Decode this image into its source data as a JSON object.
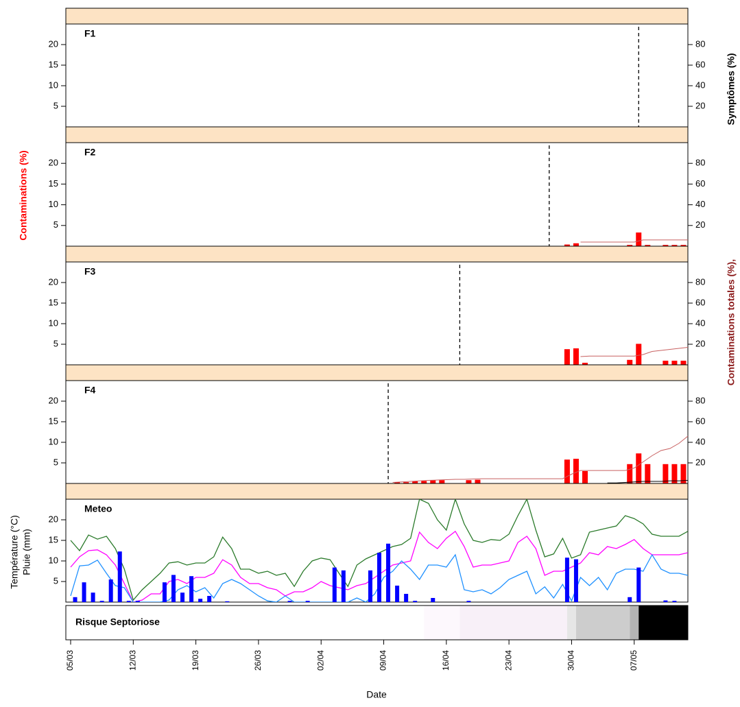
{
  "figure": {
    "xlabel": "Date",
    "xlim": [
      "05/03",
      "13/05"
    ],
    "xticks": [
      "05/03",
      "12/03",
      "19/03",
      "26/03",
      "02/04",
      "09/04",
      "16/04",
      "23/04",
      "30/04",
      "07/05"
    ],
    "ylabel": "Contaminations (%)",
    "y2labels": [
      "Symptômes (%)",
      "Contaminations totales (%),"
    ]
  },
  "chart_data": [
    {
      "type": "bar",
      "title": "F1",
      "ylim": [
        0,
        25
      ],
      "yticks": [
        5,
        10,
        15,
        20
      ],
      "y2lim": [
        0,
        100
      ],
      "y2ticks": [
        20,
        40,
        60,
        80
      ],
      "vline": "08/05",
      "series": []
    },
    {
      "type": "bar",
      "title": "F2",
      "ylim": [
        0,
        25
      ],
      "yticks": [
        5,
        10,
        15,
        20
      ],
      "y2lim": [
        0,
        100
      ],
      "y2ticks": [
        20,
        40,
        60,
        80
      ],
      "vline": "28/04",
      "series": [
        {
          "type": "bar",
          "color": "#ff0000",
          "x": [
            "30/04",
            "01/05",
            "07/05",
            "08/05",
            "09/05",
            "11/05",
            "12/05",
            "13/05"
          ],
          "values": [
            0.4,
            0.7,
            0.3,
            3.3,
            0.3,
            0.3,
            0.3,
            0.3
          ]
        },
        {
          "type": "line",
          "axis": "y2",
          "color": "#c86060",
          "x": [
            "01/05",
            "02/05",
            "03/05",
            "04/05",
            "05/05",
            "06/05",
            "07/05",
            "08/05",
            "09/05",
            "10/05",
            "11/05",
            "12/05",
            "13/05"
          ],
          "values": [
            4,
            4,
            4,
            4,
            4,
            4,
            4,
            6,
            6,
            6,
            6,
            6,
            6
          ]
        }
      ]
    },
    {
      "type": "bar",
      "title": "F3",
      "ylim": [
        0,
        25
      ],
      "yticks": [
        5,
        10,
        15,
        20
      ],
      "y2lim": [
        0,
        100
      ],
      "y2ticks": [
        20,
        40,
        60,
        80
      ],
      "vline": "18/04",
      "series": [
        {
          "type": "bar",
          "color": "#ff0000",
          "x": [
            "30/04",
            "01/05",
            "02/05",
            "07/05",
            "08/05",
            "11/05",
            "12/05",
            "13/05"
          ],
          "values": [
            3.8,
            4,
            0.5,
            1.2,
            5.1,
            1,
            1,
            1
          ]
        },
        {
          "type": "line",
          "axis": "y2",
          "color": "#c86060",
          "x": [
            "01/05",
            "02/05",
            "03/05",
            "04/05",
            "05/05",
            "06/05",
            "07/05",
            "08/05",
            "09/05",
            "10/05",
            "11/05",
            "12/05",
            "13/05"
          ],
          "values": [
            8,
            8.5,
            8.5,
            8.5,
            8.5,
            8.5,
            8.5,
            10,
            13,
            14,
            15,
            16,
            17
          ]
        }
      ]
    },
    {
      "type": "bar",
      "title": "F4",
      "ylim": [
        0,
        25
      ],
      "yticks": [
        5,
        10,
        15,
        20
      ],
      "y2lim": [
        0,
        100
      ],
      "y2ticks": [
        20,
        40,
        60,
        80
      ],
      "vline": "10/04",
      "series": [
        {
          "type": "bar",
          "color": "#ff0000",
          "x": [
            "11/04",
            "12/04",
            "13/04",
            "14/04",
            "15/04",
            "16/04",
            "19/04",
            "20/04",
            "30/04",
            "01/05",
            "02/05",
            "07/05",
            "08/05",
            "09/05",
            "11/05",
            "12/05",
            "13/05"
          ],
          "values": [
            0.3,
            0.3,
            0.5,
            0.6,
            0.8,
            0.8,
            0.8,
            0.9,
            5.8,
            6,
            3,
            4.7,
            7.3,
            4.7,
            4.7,
            4.7,
            4.7
          ]
        },
        {
          "type": "line",
          "axis": "y2",
          "color": "#c86060",
          "x": [
            "10/04",
            "11/04",
            "12/04",
            "13/04",
            "14/04",
            "15/04",
            "16/04",
            "17/04",
            "18/04",
            "19/04",
            "20/04",
            "21/04",
            "22/04",
            "23/04",
            "24/04",
            "25/04",
            "26/04",
            "27/04",
            "28/04",
            "29/04",
            "30/04",
            "01/05",
            "02/05",
            "03/05",
            "04/05",
            "05/05",
            "06/05",
            "07/05",
            "08/05",
            "09/05",
            "10/05",
            "11/05",
            "12/05",
            "13/05"
          ],
          "values": [
            1,
            1.5,
            2,
            2.5,
            3,
            3.3,
            3.7,
            4,
            4,
            4.3,
            4.6,
            4.6,
            4.6,
            4.6,
            4.6,
            4.6,
            4.6,
            4.6,
            4.6,
            4.6,
            9,
            12.6,
            12.6,
            12.6,
            12.6,
            12.6,
            12.6,
            15,
            21,
            27,
            32,
            34,
            39,
            46
          ]
        },
        {
          "type": "line",
          "axis": "y2",
          "color": "#000000",
          "x": [
            "04/05",
            "05/05",
            "06/05",
            "07/05",
            "08/05",
            "09/05",
            "10/05",
            "11/05",
            "12/05",
            "13/05"
          ],
          "values": [
            0.5,
            0.5,
            1,
            1.5,
            2,
            2,
            2,
            2.5,
            2.5,
            3
          ]
        }
      ]
    },
    {
      "type": "line",
      "title": "Meteo",
      "ylabel": [
        "Température (°C)",
        "Pluie (mm)"
      ],
      "ylim": [
        0,
        25
      ],
      "yticks": [
        5,
        10,
        15,
        20
      ],
      "x": [
        "05/03",
        "06/03",
        "07/03",
        "08/03",
        "09/03",
        "10/03",
        "11/03",
        "12/03",
        "13/03",
        "14/03",
        "15/03",
        "16/03",
        "17/03",
        "18/03",
        "19/03",
        "20/03",
        "21/03",
        "22/03",
        "23/03",
        "24/03",
        "25/03",
        "26/03",
        "27/03",
        "28/03",
        "29/03",
        "30/03",
        "31/03",
        "01/04",
        "02/04",
        "03/04",
        "04/04",
        "05/04",
        "06/04",
        "07/04",
        "08/04",
        "09/04",
        "10/04",
        "11/04",
        "12/04",
        "13/04",
        "14/04",
        "15/04",
        "16/04",
        "17/04",
        "18/04",
        "19/04",
        "20/04",
        "21/04",
        "22/04",
        "23/04",
        "24/04",
        "25/04",
        "26/04",
        "27/04",
        "28/04",
        "29/04",
        "30/04",
        "01/05",
        "02/05",
        "03/05",
        "04/05",
        "05/05",
        "06/05",
        "07/05",
        "08/05",
        "09/05",
        "10/05",
        "11/05",
        "12/05",
        "13/05"
      ],
      "series": [
        {
          "type": "line",
          "color": "#2a7a2a",
          "values": [
            15,
            12.5,
            16.3,
            15.3,
            16,
            13,
            8,
            0.5,
            3,
            5,
            7,
            9.5,
            9.8,
            9,
            9.5,
            9.5,
            11,
            15.8,
            13,
            8,
            8,
            7,
            7.5,
            6.5,
            7,
            3.8,
            7.5,
            10,
            10.7,
            10.3,
            7,
            3.8,
            9,
            10.5,
            11.5,
            12.5,
            13.5,
            14,
            15.5,
            25,
            24,
            20,
            17.5,
            25,
            19,
            15,
            14.5,
            15.2,
            15,
            16.5,
            21,
            25,
            17.5,
            11,
            11.7,
            15.5,
            10.7,
            11.5,
            17,
            17.5,
            18,
            18.5,
            21,
            20.3,
            19,
            16.5,
            16,
            16,
            16,
            17.2
          ]
        },
        {
          "type": "line",
          "color": "#ff00ff",
          "values": [
            8.5,
            11,
            12.5,
            12.7,
            11.5,
            9,
            4.5,
            0,
            0.5,
            2,
            2,
            5,
            5.5,
            4.5,
            6,
            6,
            7,
            10.3,
            9,
            6,
            4.5,
            4.5,
            3.5,
            3,
            1.5,
            2.5,
            2.5,
            3.5,
            5,
            4,
            3.5,
            3,
            4,
            4.5,
            6,
            7.5,
            9,
            9.5,
            10,
            17,
            14.5,
            13,
            15.5,
            17.2,
            13.5,
            8.5,
            9,
            9,
            9.5,
            10,
            14.5,
            16,
            13,
            6.5,
            7.5,
            7.5,
            8.5,
            9.5,
            12,
            11.5,
            13.5,
            13,
            14,
            15.2,
            13,
            11.5,
            11.5,
            11.5,
            11.5,
            12
          ]
        },
        {
          "type": "line",
          "color": "#1e90ff",
          "values": [
            1.5,
            8.8,
            9,
            10.2,
            7,
            4,
            3.5,
            0,
            0,
            0,
            0,
            0.5,
            3,
            4,
            2.5,
            3.5,
            1,
            4.5,
            5.5,
            4.5,
            3,
            1.5,
            0.3,
            0,
            1.5,
            0,
            0,
            0,
            0,
            0,
            0,
            0,
            1,
            0,
            2,
            6,
            7.5,
            10,
            8,
            5.5,
            9,
            9,
            8.5,
            11.5,
            3,
            2.5,
            3,
            2,
            3.5,
            5.5,
            6.5,
            7.5,
            2,
            3.7,
            1,
            4.3,
            0.3,
            6,
            4,
            6,
            3,
            7,
            8,
            8,
            7.5,
            11.5,
            8,
            7,
            7,
            6.5
          ]
        },
        {
          "type": "bar",
          "color": "#0000ff",
          "x": [
            "06/03",
            "07/03",
            "08/03",
            "09/03",
            "10/03",
            "11/03",
            "12/03",
            "13/03",
            "16/03",
            "17/03",
            "18/03",
            "19/03",
            "20/03",
            "21/03",
            "23/03",
            "30/03",
            "01/04",
            "04/04",
            "05/04",
            "08/04",
            "09/04",
            "10/04",
            "11/04",
            "12/04",
            "13/04",
            "15/04",
            "19/04",
            "30/04",
            "01/05",
            "07/05",
            "08/05",
            "11/05",
            "12/05"
          ],
          "values": [
            1.2,
            4.8,
            2.3,
            0.3,
            5.5,
            12.3,
            0.3,
            0.3,
            4.8,
            6.6,
            2.3,
            6.3,
            0.8,
            1.5,
            0.2,
            0.3,
            0.3,
            8.4,
            7.7,
            7.7,
            12,
            14.2,
            4,
            2,
            0.3,
            1,
            0.3,
            10.8,
            10.4,
            1.2,
            8.4,
            0.4,
            0.3
          ]
        }
      ]
    },
    {
      "type": "strip",
      "title": "Risque Septoriose",
      "bands": [
        {
          "from": "05/03",
          "to": "13/04",
          "color": "#ffffff"
        },
        {
          "from": "14/04",
          "to": "17/04",
          "color": "#fdf8fd"
        },
        {
          "from": "18/04",
          "to": "29/04",
          "color": "#f8f0f8"
        },
        {
          "from": "30/04",
          "to": "30/04",
          "color": "#e6e6e6"
        },
        {
          "from": "01/05",
          "to": "06/05",
          "color": "#cdcdcd"
        },
        {
          "from": "07/05",
          "to": "07/05",
          "color": "#b4b4b4"
        },
        {
          "from": "08/05",
          "to": "13/05",
          "color": "#000000"
        }
      ]
    }
  ]
}
